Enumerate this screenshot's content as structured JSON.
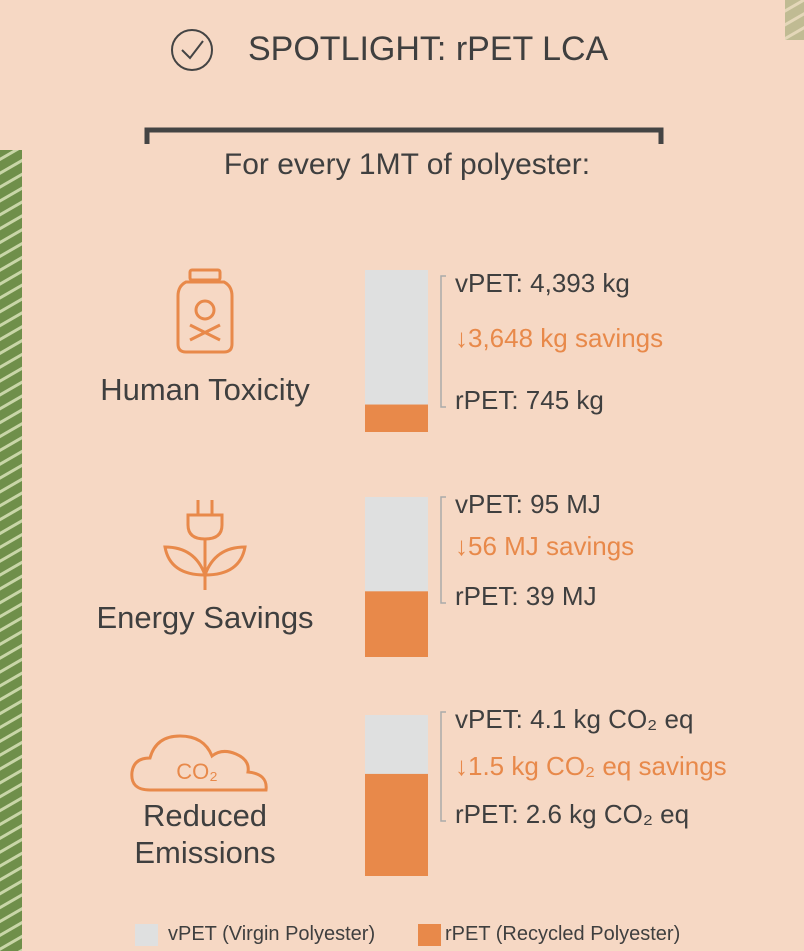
{
  "header": {
    "title": "SPOTLIGHT: rPET LCA",
    "subtitle": "For every 1MT of polyester:"
  },
  "items": [
    {
      "name": "Human Toxicity",
      "vpet": {
        "value": 4393,
        "label": "vPET: 4,393 kg"
      },
      "savings": "↓3,648 kg savings",
      "rpet": {
        "value": 745,
        "label": "rPET: 745 kg"
      }
    },
    {
      "name": "Energy Savings",
      "vpet": {
        "value": 95,
        "label": "vPET: 95 MJ"
      },
      "savings": "↓56 MJ savings",
      "rpet": {
        "value": 39,
        "label": "rPET: 39 MJ"
      }
    },
    {
      "name": "Reduced Emissions",
      "vpet": {
        "value": 4.1,
        "label": "vPET: 4.1 kg CO₂ eq"
      },
      "savings": "↓1.5 kg CO₂ eq savings",
      "rpet": {
        "value": 2.6,
        "label": "rPET: 2.6 kg CO₂ eq"
      }
    }
  ],
  "legend": [
    {
      "name": "vPET (Virgin Polyester)",
      "color": "#dfe0e0"
    },
    {
      "name": "rPET (Recycled Polyester)",
      "color": "#e8894a"
    }
  ]
}
